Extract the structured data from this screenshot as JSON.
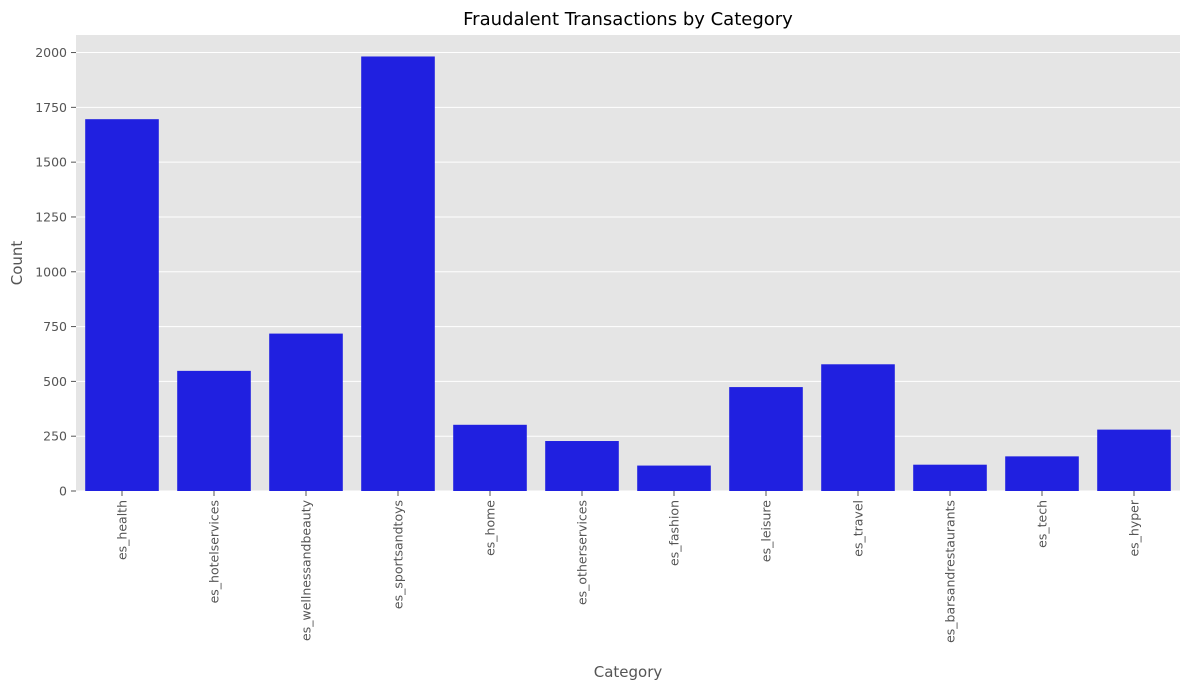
{
  "chart_data": {
    "type": "bar",
    "title": "Fraudalent Transactions by Category",
    "xlabel": "Category",
    "ylabel": "Count",
    "categories": [
      "es_health",
      "es_hotelservices",
      "es_wellnessandbeauty",
      "es_sportsandtoys",
      "es_home",
      "es_otherservices",
      "es_fashion",
      "es_leisure",
      "es_travel",
      "es_barsandrestaurants",
      "es_tech",
      "es_hyper"
    ],
    "values": [
      1696,
      548,
      718,
      1982,
      302,
      228,
      116,
      474,
      578,
      120,
      158,
      280
    ],
    "ylim": [
      0,
      2080
    ],
    "yticks": [
      0,
      250,
      500,
      750,
      1000,
      1250,
      1500,
      1750,
      2000
    ],
    "grid": true,
    "colors": {
      "bar": "#2020e0",
      "plot_background": "#e5e5e5",
      "grid": "#ffffff",
      "tick_text": "#555555",
      "title_text": "#000000"
    }
  }
}
